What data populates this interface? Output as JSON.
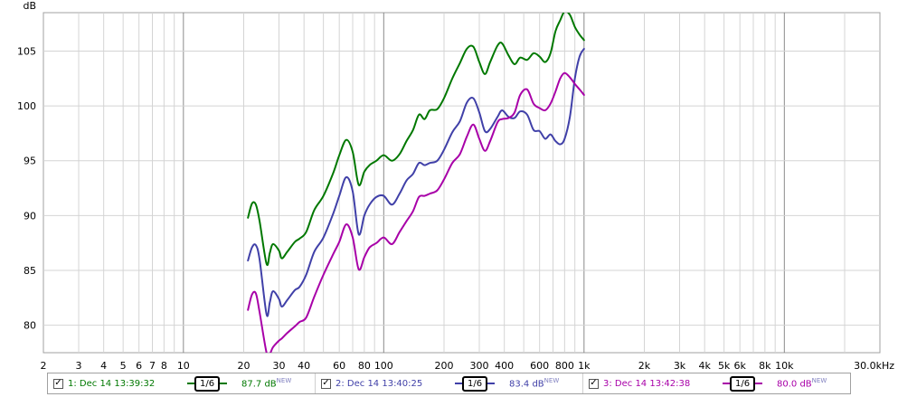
{
  "chart_data": {
    "type": "line",
    "title": "",
    "xlabel": "",
    "ylabel": "dB",
    "x_scale": "log",
    "xlim": [
      2,
      30000
    ],
    "ylim": [
      77.5,
      108.5
    ],
    "grid": true,
    "x_tick_labels": [
      {
        "v": 2,
        "t": "2"
      },
      {
        "v": 3,
        "t": "3"
      },
      {
        "v": 4,
        "t": "4"
      },
      {
        "v": 5,
        "t": "5"
      },
      {
        "v": 6,
        "t": "6"
      },
      {
        "v": 7,
        "t": "7"
      },
      {
        "v": 8,
        "t": "8"
      },
      {
        "v": 10,
        "t": "10"
      },
      {
        "v": 20,
        "t": "20"
      },
      {
        "v": 30,
        "t": "30"
      },
      {
        "v": 40,
        "t": "40"
      },
      {
        "v": 60,
        "t": "60"
      },
      {
        "v": 80,
        "t": "80"
      },
      {
        "v": 100,
        "t": "100"
      },
      {
        "v": 200,
        "t": "200"
      },
      {
        "v": 300,
        "t": "300"
      },
      {
        "v": 400,
        "t": "400"
      },
      {
        "v": 600,
        "t": "600"
      },
      {
        "v": 800,
        "t": "800"
      },
      {
        "v": 1000,
        "t": "1k"
      },
      {
        "v": 2000,
        "t": "2k"
      },
      {
        "v": 3000,
        "t": "3k"
      },
      {
        "v": 4000,
        "t": "4k"
      },
      {
        "v": 5000,
        "t": "5k"
      },
      {
        "v": 6000,
        "t": "6k"
      },
      {
        "v": 8000,
        "t": "8k"
      },
      {
        "v": 10000,
        "t": "10k"
      },
      {
        "v": 30000,
        "t": "30.0kHz"
      }
    ],
    "y_ticks": [
      80,
      85,
      90,
      95,
      100,
      105
    ],
    "series": [
      {
        "name": "1: Dec 14 13:39:32",
        "color": "#007800",
        "smoothing": "1/6",
        "spl": "87.7 dB",
        "points": [
          [
            21,
            89.8
          ],
          [
            22,
            91.1
          ],
          [
            23,
            91.0
          ],
          [
            24,
            89.5
          ],
          [
            26,
            85.6
          ],
          [
            27,
            86.6
          ],
          [
            28,
            87.4
          ],
          [
            30,
            86.8
          ],
          [
            31,
            86.1
          ],
          [
            33,
            86.7
          ],
          [
            36,
            87.6
          ],
          [
            38,
            87.9
          ],
          [
            41,
            88.5
          ],
          [
            45,
            90.5
          ],
          [
            50,
            91.8
          ],
          [
            56,
            93.9
          ],
          [
            60,
            95.5
          ],
          [
            65,
            96.9
          ],
          [
            70,
            95.8
          ],
          [
            75,
            92.8
          ],
          [
            80,
            94.0
          ],
          [
            85,
            94.6
          ],
          [
            92,
            95.0
          ],
          [
            100,
            95.5
          ],
          [
            110,
            95.0
          ],
          [
            120,
            95.6
          ],
          [
            130,
            96.8
          ],
          [
            140,
            97.8
          ],
          [
            150,
            99.2
          ],
          [
            160,
            98.8
          ],
          [
            170,
            99.6
          ],
          [
            185,
            99.7
          ],
          [
            200,
            100.7
          ],
          [
            220,
            102.5
          ],
          [
            240,
            103.9
          ],
          [
            260,
            105.2
          ],
          [
            280,
            105.4
          ],
          [
            300,
            104.0
          ],
          [
            320,
            102.9
          ],
          [
            340,
            104.0
          ],
          [
            370,
            105.5
          ],
          [
            390,
            105.7
          ],
          [
            420,
            104.6
          ],
          [
            450,
            103.8
          ],
          [
            480,
            104.4
          ],
          [
            520,
            104.2
          ],
          [
            560,
            104.8
          ],
          [
            600,
            104.5
          ],
          [
            640,
            104.0
          ],
          [
            680,
            104.8
          ],
          [
            720,
            106.8
          ],
          [
            760,
            107.8
          ],
          [
            800,
            108.6
          ],
          [
            850,
            108.3
          ],
          [
            900,
            107.2
          ],
          [
            950,
            106.5
          ],
          [
            1000,
            106.0
          ]
        ]
      },
      {
        "name": "2: Dec 14 13:40:25",
        "color": "#4040a8",
        "smoothing": "1/6",
        "spl": "83.4 dB",
        "points": [
          [
            21,
            85.9
          ],
          [
            22,
            87.1
          ],
          [
            23,
            87.3
          ],
          [
            24,
            86.0
          ],
          [
            26,
            81.0
          ],
          [
            27,
            82.1
          ],
          [
            28,
            83.1
          ],
          [
            30,
            82.4
          ],
          [
            31,
            81.7
          ],
          [
            33,
            82.3
          ],
          [
            36,
            83.2
          ],
          [
            38,
            83.5
          ],
          [
            41,
            84.6
          ],
          [
            45,
            86.7
          ],
          [
            50,
            88.0
          ],
          [
            56,
            90.2
          ],
          [
            60,
            91.8
          ],
          [
            65,
            93.5
          ],
          [
            70,
            92.2
          ],
          [
            75,
            88.3
          ],
          [
            80,
            90.0
          ],
          [
            85,
            91.0
          ],
          [
            92,
            91.7
          ],
          [
            100,
            91.8
          ],
          [
            110,
            91.0
          ],
          [
            120,
            92.0
          ],
          [
            130,
            93.2
          ],
          [
            140,
            93.8
          ],
          [
            150,
            94.8
          ],
          [
            160,
            94.6
          ],
          [
            170,
            94.8
          ],
          [
            185,
            95.0
          ],
          [
            200,
            96.0
          ],
          [
            220,
            97.6
          ],
          [
            240,
            98.6
          ],
          [
            260,
            100.3
          ],
          [
            280,
            100.7
          ],
          [
            300,
            99.4
          ],
          [
            320,
            97.7
          ],
          [
            340,
            97.9
          ],
          [
            370,
            99.0
          ],
          [
            390,
            99.6
          ],
          [
            420,
            99.0
          ],
          [
            450,
            98.9
          ],
          [
            480,
            99.5
          ],
          [
            520,
            99.2
          ],
          [
            560,
            97.8
          ],
          [
            600,
            97.7
          ],
          [
            640,
            97.0
          ],
          [
            680,
            97.4
          ],
          [
            720,
            96.8
          ],
          [
            760,
            96.5
          ],
          [
            800,
            97.0
          ],
          [
            850,
            99.0
          ],
          [
            900,
            102.5
          ],
          [
            950,
            104.5
          ],
          [
            1000,
            105.2
          ]
        ]
      },
      {
        "name": "3: Dec 14 13:42:38",
        "color": "#a800a8",
        "smoothing": "1/6",
        "spl": "80.0 dB",
        "points": [
          [
            21,
            81.4
          ],
          [
            22,
            82.8
          ],
          [
            23,
            82.9
          ],
          [
            24,
            81.2
          ],
          [
            26,
            77.5
          ],
          [
            27,
            77.4
          ],
          [
            28,
            78.0
          ],
          [
            30,
            78.6
          ],
          [
            31,
            78.8
          ],
          [
            33,
            79.3
          ],
          [
            36,
            79.9
          ],
          [
            38,
            80.3
          ],
          [
            41,
            80.7
          ],
          [
            45,
            82.6
          ],
          [
            50,
            84.6
          ],
          [
            56,
            86.5
          ],
          [
            60,
            87.6
          ],
          [
            65,
            89.2
          ],
          [
            70,
            88.0
          ],
          [
            75,
            85.1
          ],
          [
            80,
            86.2
          ],
          [
            85,
            87.1
          ],
          [
            92,
            87.5
          ],
          [
            100,
            88.0
          ],
          [
            110,
            87.4
          ],
          [
            120,
            88.5
          ],
          [
            130,
            89.5
          ],
          [
            140,
            90.4
          ],
          [
            150,
            91.7
          ],
          [
            160,
            91.8
          ],
          [
            170,
            92.0
          ],
          [
            185,
            92.3
          ],
          [
            200,
            93.3
          ],
          [
            220,
            94.8
          ],
          [
            240,
            95.6
          ],
          [
            260,
            97.2
          ],
          [
            280,
            98.3
          ],
          [
            300,
            97.0
          ],
          [
            320,
            95.9
          ],
          [
            340,
            96.8
          ],
          [
            370,
            98.5
          ],
          [
            390,
            98.8
          ],
          [
            420,
            98.9
          ],
          [
            450,
            99.4
          ],
          [
            480,
            101.0
          ],
          [
            520,
            101.5
          ],
          [
            560,
            100.2
          ],
          [
            600,
            99.8
          ],
          [
            640,
            99.6
          ],
          [
            680,
            100.2
          ],
          [
            720,
            101.3
          ],
          [
            760,
            102.5
          ],
          [
            800,
            103.0
          ],
          [
            850,
            102.6
          ],
          [
            900,
            102.0
          ],
          [
            950,
            101.5
          ],
          [
            1000,
            101.0
          ]
        ]
      }
    ]
  },
  "legend": [
    {
      "checkbox": "✓",
      "label": "1: Dec 14 13:39:32",
      "smoothing": "1/6",
      "spl": "87.7 dB",
      "new_badge": "NEW",
      "color": "#007800"
    },
    {
      "checkbox": "✓",
      "label": "2: Dec 14 13:40:25",
      "smoothing": "1/6",
      "spl": "83.4 dB",
      "new_badge": "NEW",
      "color": "#4040a8"
    },
    {
      "checkbox": "✓",
      "label": "3: Dec 14 13:42:38",
      "smoothing": "1/6",
      "spl": "80.0 dB",
      "new_badge": "NEW",
      "color": "#a800a8"
    }
  ]
}
